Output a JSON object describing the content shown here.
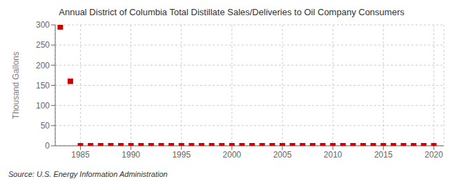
{
  "chart_data": {
    "type": "scatter",
    "title": "Annual District of Columbia Total Distillate Sales/Deliveries to Oil Company Consumers",
    "ylabel": "Thousand Gallons",
    "annotations": [
      "Source: U.S. Energy Information Administration"
    ],
    "x": [
      1983,
      1984,
      1985,
      1986,
      1987,
      1988,
      1989,
      1990,
      1991,
      1992,
      1993,
      1994,
      1995,
      1996,
      1997,
      1998,
      1999,
      2000,
      2001,
      2002,
      2003,
      2004,
      2005,
      2006,
      2007,
      2008,
      2009,
      2010,
      2011,
      2012,
      2013,
      2014,
      2015,
      2016,
      2017,
      2018,
      2019,
      2020
    ],
    "values": [
      295,
      160,
      0,
      0,
      0,
      0,
      0,
      0,
      0,
      0,
      0,
      0,
      0,
      0,
      0,
      0,
      0,
      0,
      0,
      0,
      0,
      0,
      0,
      0,
      0,
      0,
      0,
      0,
      0,
      0,
      0,
      0,
      0,
      0,
      0,
      0,
      0,
      0
    ],
    "color": "#cc0000",
    "marker": "square",
    "xlim": [
      1982.5,
      2021
    ],
    "ylim": [
      0,
      300
    ],
    "xticks": [
      1985,
      1990,
      1995,
      2000,
      2005,
      2010,
      2015,
      2020
    ],
    "yticks": [
      0,
      50,
      100,
      150,
      200,
      250,
      300
    ],
    "grid": true
  }
}
